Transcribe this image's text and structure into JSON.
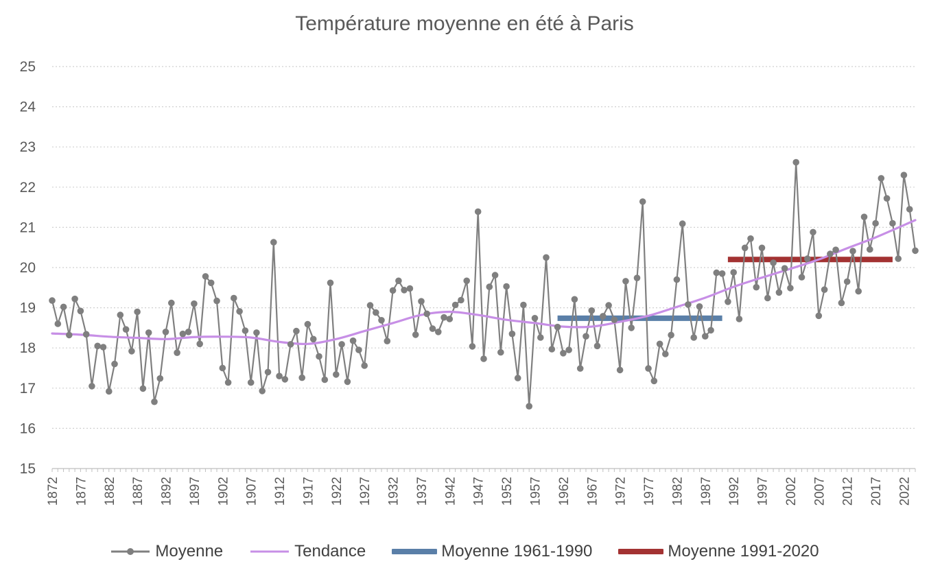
{
  "chart_data": {
    "type": "line",
    "title": "Température moyenne en été à Paris",
    "xlabel": "",
    "ylabel": "",
    "ylim": [
      15,
      25
    ],
    "xlim": [
      1872,
      2024
    ],
    "yticks": [
      "15",
      "16",
      "17",
      "18",
      "19",
      "20",
      "21",
      "22",
      "23",
      "24",
      "25"
    ],
    "xticks": [
      "1872",
      "1877",
      "1882",
      "1887",
      "1892",
      "1897",
      "1902",
      "1907",
      "1912",
      "1917",
      "1922",
      "1927",
      "1932",
      "1937",
      "1942",
      "1947",
      "1952",
      "1957",
      "1962",
      "1967",
      "1972",
      "1977",
      "1982",
      "1987",
      "1992",
      "1997",
      "2002",
      "2007",
      "2012",
      "2017",
      "2022"
    ],
    "grid": "horizontal dotted",
    "legend_position": "bottom",
    "colors": {
      "moyenne": "#7f7f7f",
      "tendance": "#c78fe6",
      "moy_1961_1990": "#5a7fa8",
      "moy_1991_2020": "#a33232",
      "grid": "#d0d0d0",
      "axis": "#bfbfbf",
      "text": "#595959"
    },
    "series": [
      {
        "name": "Moyenne",
        "x_start": 1872,
        "values": [
          19.18,
          18.6,
          19.02,
          18.32,
          19.22,
          18.92,
          18.34,
          17.05,
          18.05,
          18.02,
          16.92,
          17.6,
          18.82,
          18.46,
          17.92,
          18.9,
          16.99,
          18.38,
          16.66,
          17.24,
          18.4,
          19.12,
          17.88,
          18.35,
          18.4,
          19.1,
          18.1,
          19.78,
          19.62,
          19.17,
          17.5,
          17.14,
          19.24,
          18.91,
          18.43,
          17.14,
          18.38,
          16.93,
          17.4,
          20.63,
          17.3,
          17.22,
          18.09,
          18.42,
          17.26,
          18.59,
          18.22,
          17.79,
          17.21,
          19.62,
          17.34,
          18.09,
          17.16,
          18.18,
          17.95,
          17.56,
          19.06,
          18.88,
          18.69,
          18.17,
          19.43,
          19.67,
          19.44,
          19.48,
          18.33,
          19.16,
          18.85,
          18.48,
          18.4,
          18.76,
          18.72,
          19.07,
          19.19,
          19.67,
          18.04,
          21.39,
          17.73,
          19.52,
          19.81,
          17.89,
          19.53,
          18.35,
          17.25,
          19.07,
          16.55,
          18.74,
          18.26,
          20.25,
          17.97,
          18.52,
          17.87,
          17.95,
          19.21,
          17.49,
          18.29,
          18.93,
          18.05,
          18.79,
          19.06,
          18.7,
          17.45,
          19.66,
          18.5,
          19.74,
          21.64,
          17.49,
          17.18,
          18.1,
          17.85,
          18.32,
          19.7,
          21.09,
          19.08,
          18.26,
          19.03,
          18.29,
          18.44,
          19.87,
          19.85,
          19.15,
          19.88,
          18.72,
          20.49,
          20.72,
          19.51,
          20.49,
          19.24,
          20.12,
          19.38,
          19.98,
          19.49,
          22.62,
          19.76,
          20.22,
          20.88,
          18.8,
          19.45,
          20.34,
          20.44,
          19.12,
          19.65,
          20.41,
          19.41,
          21.26,
          20.45,
          21.1,
          22.22,
          21.72,
          21.1,
          20.22,
          22.3,
          21.45,
          20.42
        ]
      },
      {
        "name": "Tendance",
        "points": [
          [
            1872,
            18.36
          ],
          [
            1877,
            18.33
          ],
          [
            1882,
            18.28
          ],
          [
            1887,
            18.25
          ],
          [
            1892,
            18.22
          ],
          [
            1897,
            18.27
          ],
          [
            1902,
            18.28
          ],
          [
            1907,
            18.26
          ],
          [
            1912,
            18.15
          ],
          [
            1917,
            18.1
          ],
          [
            1922,
            18.22
          ],
          [
            1927,
            18.42
          ],
          [
            1932,
            18.62
          ],
          [
            1937,
            18.82
          ],
          [
            1942,
            18.9
          ],
          [
            1947,
            18.82
          ],
          [
            1952,
            18.7
          ],
          [
            1957,
            18.62
          ],
          [
            1962,
            18.53
          ],
          [
            1967,
            18.53
          ],
          [
            1972,
            18.65
          ],
          [
            1977,
            18.8
          ],
          [
            1982,
            19.02
          ],
          [
            1987,
            19.25
          ],
          [
            1992,
            19.52
          ],
          [
            1997,
            19.75
          ],
          [
            2002,
            19.97
          ],
          [
            2007,
            20.2
          ],
          [
            2012,
            20.48
          ],
          [
            2017,
            20.75
          ],
          [
            2024,
            21.18
          ]
        ]
      },
      {
        "name": "Moyenne 1961-1990",
        "x": [
          1961,
          1990
        ],
        "value": 18.74
      },
      {
        "name": "Moyenne 1991-2020",
        "x": [
          1991,
          2020
        ],
        "value": 20.2
      }
    ]
  }
}
